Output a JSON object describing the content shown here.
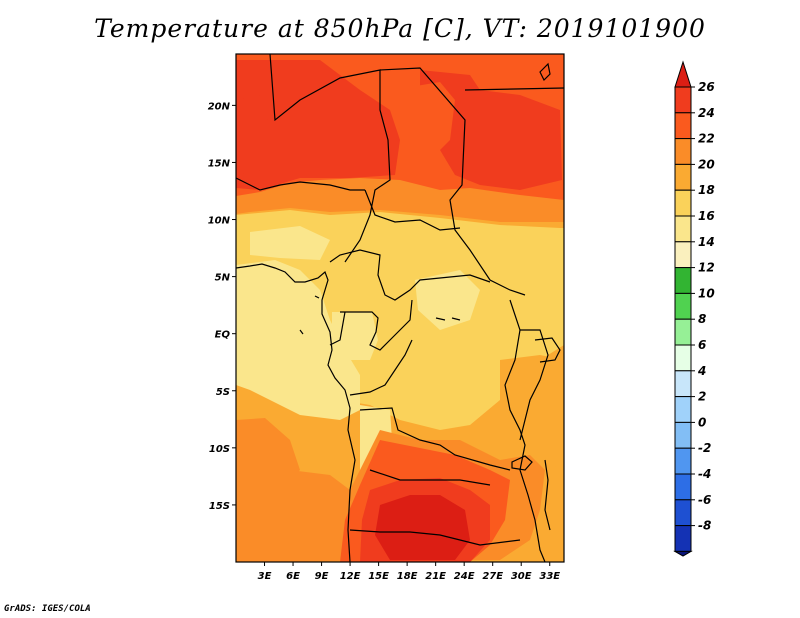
{
  "title": "Temperature at 850hPa [C], VT: 2019101900",
  "credit": "GrADS: IGES/COLA",
  "map": {
    "x_ticks": [
      "3E",
      "6E",
      "9E",
      "12E",
      "15E",
      "18E",
      "21E",
      "24E",
      "27E",
      "30E",
      "33E"
    ],
    "y_ticks": [
      "20N",
      "15N",
      "10N",
      "5N",
      "EQ",
      "5S",
      "10S",
      "15S"
    ]
  },
  "colorbar": {
    "labels": [
      "26",
      "24",
      "22",
      "20",
      "18",
      "16",
      "14",
      "12",
      "10",
      "8",
      "6",
      "4",
      "2",
      "0",
      "-2",
      "-4",
      "-6",
      "-8"
    ],
    "colors": [
      "#dc1e14",
      "#f03c1e",
      "#fa5a1e",
      "#fa8c28",
      "#faaa32",
      "#fad25a",
      "#fae68c",
      "#faf0be",
      "#32b432",
      "#50d250",
      "#96f096",
      "#e6ffe6",
      "#c8e6fa",
      "#a0d2fa",
      "#82bef5",
      "#5096f0",
      "#2d6ee6",
      "#1e50d2",
      "#1432b4",
      "#0a1478"
    ]
  },
  "field_colors": {
    "t16": "#fae68c",
    "t18": "#fad25a",
    "t20": "#faaa32",
    "t22": "#fa8c28",
    "t24": "#fa5a1e",
    "t26": "#f03c1e",
    "t28": "#dc1e14"
  }
}
